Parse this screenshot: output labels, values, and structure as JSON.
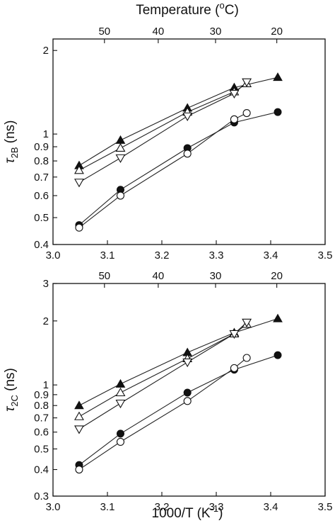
{
  "chart_data": [
    {
      "type": "scatter",
      "panel": "top",
      "xlabel": "",
      "top_axis_title": "Temperature (°C)",
      "top_axis_ticks": [
        50,
        40,
        30,
        20
      ],
      "ylabel_symbol": "τ",
      "ylabel_subscript": "2B",
      "ylabel_unit": " (ns)",
      "y_scale": "log",
      "xlim": [
        3.0,
        3.5
      ],
      "ylim": [
        0.4,
        2.2
      ],
      "x_ticks": [
        "3.0",
        "3.1",
        "3.2",
        "3.3",
        "3.4",
        "3.5"
      ],
      "y_ticks": [
        {
          "value": 0.4,
          "label": "0.4"
        },
        {
          "value": 0.5,
          "label": "0.5"
        },
        {
          "value": 0.6,
          "label": "0.6"
        },
        {
          "value": 0.7,
          "label": "0.7"
        },
        {
          "value": 0.8,
          "label": "0.8"
        },
        {
          "value": 0.9,
          "label": "0.9"
        },
        {
          "value": 1,
          "label": "1"
        },
        {
          "value": 2,
          "label": "2"
        }
      ],
      "series": [
        {
          "marker": "triangle-up-filled",
          "x": [
            3.048,
            3.124,
            3.247,
            3.333,
            3.413
          ],
          "y": [
            0.77,
            0.95,
            1.24,
            1.47,
            1.6
          ]
        },
        {
          "marker": "triangle-up-open",
          "x": [
            3.048,
            3.124,
            3.247,
            3.333,
            3.356
          ],
          "y": [
            0.74,
            0.89,
            1.2,
            1.42,
            1.52
          ]
        },
        {
          "marker": "triangle-down-open",
          "x": [
            3.048,
            3.124,
            3.247,
            3.333,
            3.356
          ],
          "y": [
            0.67,
            0.82,
            1.16,
            1.4,
            1.54
          ]
        },
        {
          "marker": "circle-filled",
          "x": [
            3.048,
            3.124,
            3.247,
            3.333,
            3.413
          ],
          "y": [
            0.47,
            0.63,
            0.89,
            1.1,
            1.2
          ]
        },
        {
          "marker": "circle-open",
          "x": [
            3.048,
            3.124,
            3.247,
            3.333,
            3.356
          ],
          "y": [
            0.46,
            0.6,
            0.85,
            1.13,
            1.19
          ]
        }
      ]
    },
    {
      "type": "scatter",
      "panel": "bottom",
      "xlabel": "1000/T (K⁻¹)",
      "top_axis_title": "",
      "top_axis_ticks": [
        50,
        40,
        30,
        20
      ],
      "ylabel_symbol": "τ",
      "ylabel_subscript": "2C",
      "ylabel_unit": " (ns)",
      "y_scale": "log",
      "xlim": [
        3.0,
        3.5
      ],
      "ylim": [
        0.3,
        3.0
      ],
      "x_ticks": [
        "3.0",
        "3.1",
        "3.2",
        "3.3",
        "3.4",
        "3.5"
      ],
      "y_ticks": [
        {
          "value": 0.3,
          "label": "0.3"
        },
        {
          "value": 0.4,
          "label": "0.4"
        },
        {
          "value": 0.5,
          "label": "0.5"
        },
        {
          "value": 0.6,
          "label": "0.6"
        },
        {
          "value": 0.7,
          "label": "0.7"
        },
        {
          "value": 0.8,
          "label": "0.8"
        },
        {
          "value": 0.9,
          "label": "0.9"
        },
        {
          "value": 1,
          "label": "1"
        },
        {
          "value": 2,
          "label": "2"
        },
        {
          "value": 3,
          "label": "3"
        }
      ],
      "series": [
        {
          "marker": "triangle-up-filled",
          "x": [
            3.048,
            3.124,
            3.247,
            3.333,
            3.413
          ],
          "y": [
            0.8,
            1.01,
            1.42,
            1.76,
            2.05
          ]
        },
        {
          "marker": "triangle-up-open",
          "x": [
            3.048,
            3.124,
            3.247,
            3.333,
            3.356
          ],
          "y": [
            0.71,
            0.92,
            1.33,
            1.74,
            1.93
          ]
        },
        {
          "marker": "triangle-down-open",
          "x": [
            3.048,
            3.124,
            3.247,
            3.333,
            3.356
          ],
          "y": [
            0.62,
            0.82,
            1.28,
            1.74,
            1.97
          ]
        },
        {
          "marker": "circle-filled",
          "x": [
            3.048,
            3.124,
            3.247,
            3.333,
            3.413
          ],
          "y": [
            0.42,
            0.59,
            0.92,
            1.18,
            1.38
          ]
        },
        {
          "marker": "circle-open",
          "x": [
            3.048,
            3.124,
            3.247,
            3.333,
            3.356
          ],
          "y": [
            0.4,
            0.54,
            0.84,
            1.2,
            1.34
          ]
        }
      ]
    }
  ]
}
